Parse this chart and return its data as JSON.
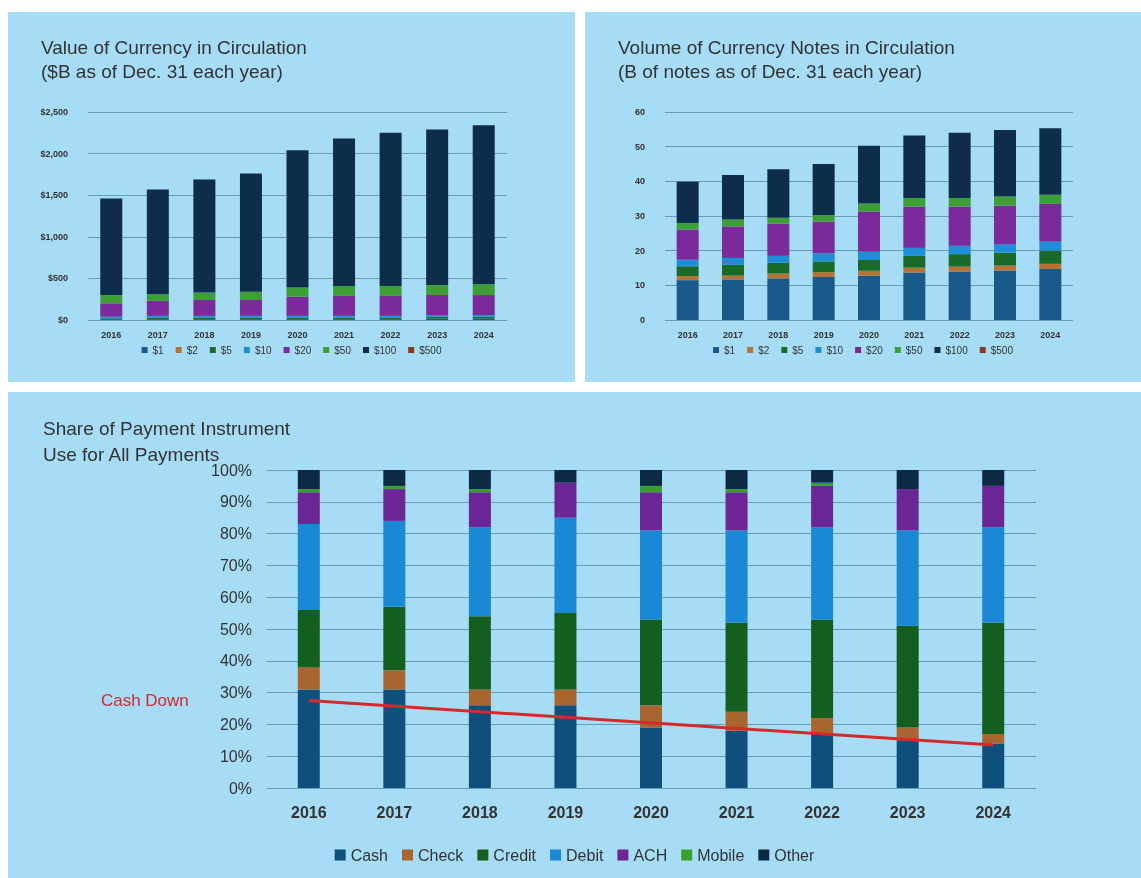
{
  "chart_data": [
    {
      "type": "bar",
      "title": "Value of Currency in Circulation\n($B as of Dec. 31 each year)",
      "stacked": true,
      "grid": "y",
      "legend": "bottom",
      "categories": [
        "2016",
        "2017",
        "2018",
        "2019",
        "2020",
        "2021",
        "2022",
        "2023",
        "2024"
      ],
      "ylim": [
        0,
        2500
      ],
      "yticks": [
        {
          "value": 0,
          "label": "$0"
        },
        {
          "value": 500,
          "label": "$500"
        },
        {
          "value": 1000,
          "label": "$1,000"
        },
        {
          "value": 1500,
          "label": "$1,500"
        },
        {
          "value": 2000,
          "label": "$2,000"
        },
        {
          "value": 2500,
          "label": "$2,500"
        }
      ],
      "series": [
        {
          "name": "$1",
          "color": "#1a5a8a",
          "values": [
            10,
            10,
            10,
            10,
            10,
            10,
            10,
            20,
            20
          ]
        },
        {
          "name": "$2",
          "color": "#b87333",
          "values": [
            0,
            0,
            0,
            0,
            0,
            0,
            0,
            0,
            0
          ]
        },
        {
          "name": "$5",
          "color": "#1a6b2a",
          "values": [
            10,
            20,
            20,
            20,
            20,
            20,
            20,
            20,
            20
          ]
        },
        {
          "name": "$10",
          "color": "#1e8fd6",
          "values": [
            20,
            20,
            20,
            20,
            20,
            20,
            20,
            20,
            20
          ]
        },
        {
          "name": "$20",
          "color": "#7a2a9a",
          "values": [
            160,
            180,
            190,
            190,
            230,
            240,
            240,
            240,
            240
          ]
        },
        {
          "name": "$50",
          "color": "#3c9e34",
          "values": [
            100,
            80,
            90,
            100,
            110,
            120,
            120,
            120,
            130
          ]
        },
        {
          "name": "$100",
          "color": "#0d2d4a",
          "values": [
            1160,
            1260,
            1360,
            1420,
            1650,
            1770,
            1840,
            1870,
            1910
          ]
        },
        {
          "name": "$500",
          "color": "#8b3a1a",
          "values": [
            0,
            0,
            0,
            0,
            0,
            0,
            0,
            0,
            0
          ]
        }
      ]
    },
    {
      "type": "bar",
      "title": "Volume of Currency Notes in Circulation\n(B of notes as of Dec. 31 each year)",
      "stacked": true,
      "grid": "y",
      "legend": "bottom",
      "categories": [
        "2016",
        "2017",
        "2018",
        "2019",
        "2020",
        "2021",
        "2022",
        "2023",
        "2024"
      ],
      "ylim": [
        0,
        60
      ],
      "yticks": [
        0,
        10,
        20,
        30,
        40,
        50,
        60
      ],
      "series": [
        {
          "name": "$1",
          "color": "#1a5a8a",
          "values": [
            11.5,
            11.7,
            12,
            12.4,
            12.8,
            13.7,
            14,
            14.3,
            14.7
          ]
        },
        {
          "name": "$2",
          "color": "#b87333",
          "values": [
            1.2,
            1.1,
            1.4,
            1.4,
            1.4,
            1.4,
            1.4,
            1.4,
            1.5
          ]
        },
        {
          "name": "$5",
          "color": "#1a6b2a",
          "values": [
            2.8,
            3.1,
            3.1,
            3.1,
            3.1,
            3.4,
            3.6,
            3.7,
            3.8
          ]
        },
        {
          "name": "$10",
          "color": "#1e8fd6",
          "values": [
            1.9,
            2,
            2,
            2.3,
            2.4,
            2.3,
            2.4,
            2.4,
            2.6
          ]
        },
        {
          "name": "$20",
          "color": "#7a2a9a",
          "values": [
            8.7,
            9.1,
            9.3,
            9.2,
            11.6,
            11.9,
            11.3,
            11.2,
            10.9
          ]
        },
        {
          "name": "$50",
          "color": "#3c9e34",
          "values": [
            1.9,
            2,
            1.7,
            1.9,
            2.3,
            2.5,
            2.5,
            2.6,
            2.6
          ]
        },
        {
          "name": "$100",
          "color": "#0d2d4a",
          "values": [
            11.9,
            12.8,
            14,
            14.7,
            16.7,
            18,
            18.8,
            19.2,
            19.2
          ]
        },
        {
          "name": "$500",
          "color": "#8b3a1a",
          "values": [
            0,
            0,
            0,
            0,
            0,
            0,
            0,
            0,
            0
          ]
        }
      ]
    },
    {
      "type": "bar",
      "title": "Share of Payment Instrument\nUse for All Payments",
      "stacked": true,
      "grid": "y",
      "legend": "bottom",
      "categories": [
        "2016",
        "2017",
        "2018",
        "2019",
        "2020",
        "2021",
        "2022",
        "2023",
        "2024"
      ],
      "ylim": [
        0,
        100
      ],
      "yticks": [
        {
          "value": 0,
          "label": "0%"
        },
        {
          "value": 10,
          "label": "10%"
        },
        {
          "value": 20,
          "label": "20%"
        },
        {
          "value": 30,
          "label": "30%"
        },
        {
          "value": 40,
          "label": "40%"
        },
        {
          "value": 50,
          "label": "50%"
        },
        {
          "value": 60,
          "label": "60%"
        },
        {
          "value": 70,
          "label": "70%"
        },
        {
          "value": 80,
          "label": "80%"
        },
        {
          "value": 90,
          "label": "90%"
        },
        {
          "value": 100,
          "label": "100%"
        }
      ],
      "series": [
        {
          "name": "Cash",
          "color": "#0f4f7c",
          "values": [
            31,
            31,
            26,
            26,
            19,
            18,
            17,
            15,
            14
          ]
        },
        {
          "name": "Check",
          "color": "#a8662e",
          "values": [
            7,
            6,
            5,
            5,
            7,
            6,
            5,
            4,
            3
          ]
        },
        {
          "name": "Credit",
          "color": "#145e20",
          "values": [
            18,
            20,
            23,
            24,
            27,
            28,
            31,
            32,
            35
          ]
        },
        {
          "name": "Debit",
          "color": "#1a88d4",
          "values": [
            27,
            27,
            28,
            30,
            28,
            29,
            29,
            30,
            30
          ]
        },
        {
          "name": "ACH",
          "color": "#6b2594",
          "values": [
            10,
            10,
            11,
            11,
            12,
            12,
            13,
            13,
            13
          ]
        },
        {
          "name": "Mobile",
          "color": "#3a9e2c",
          "values": [
            1,
            1,
            1,
            0,
            2,
            1,
            1,
            0,
            0
          ]
        },
        {
          "name": "Other",
          "color": "#0d2a45",
          "values": [
            6,
            5,
            6,
            4,
            5,
            6,
            4,
            6,
            5
          ]
        },
        {
          "name": "Cash Down",
          "type": "line",
          "color": "#d42a2a",
          "marker": "none",
          "values": [
            27.5,
            null,
            null,
            null,
            null,
            null,
            null,
            null,
            13.5
          ]
        }
      ]
    }
  ]
}
